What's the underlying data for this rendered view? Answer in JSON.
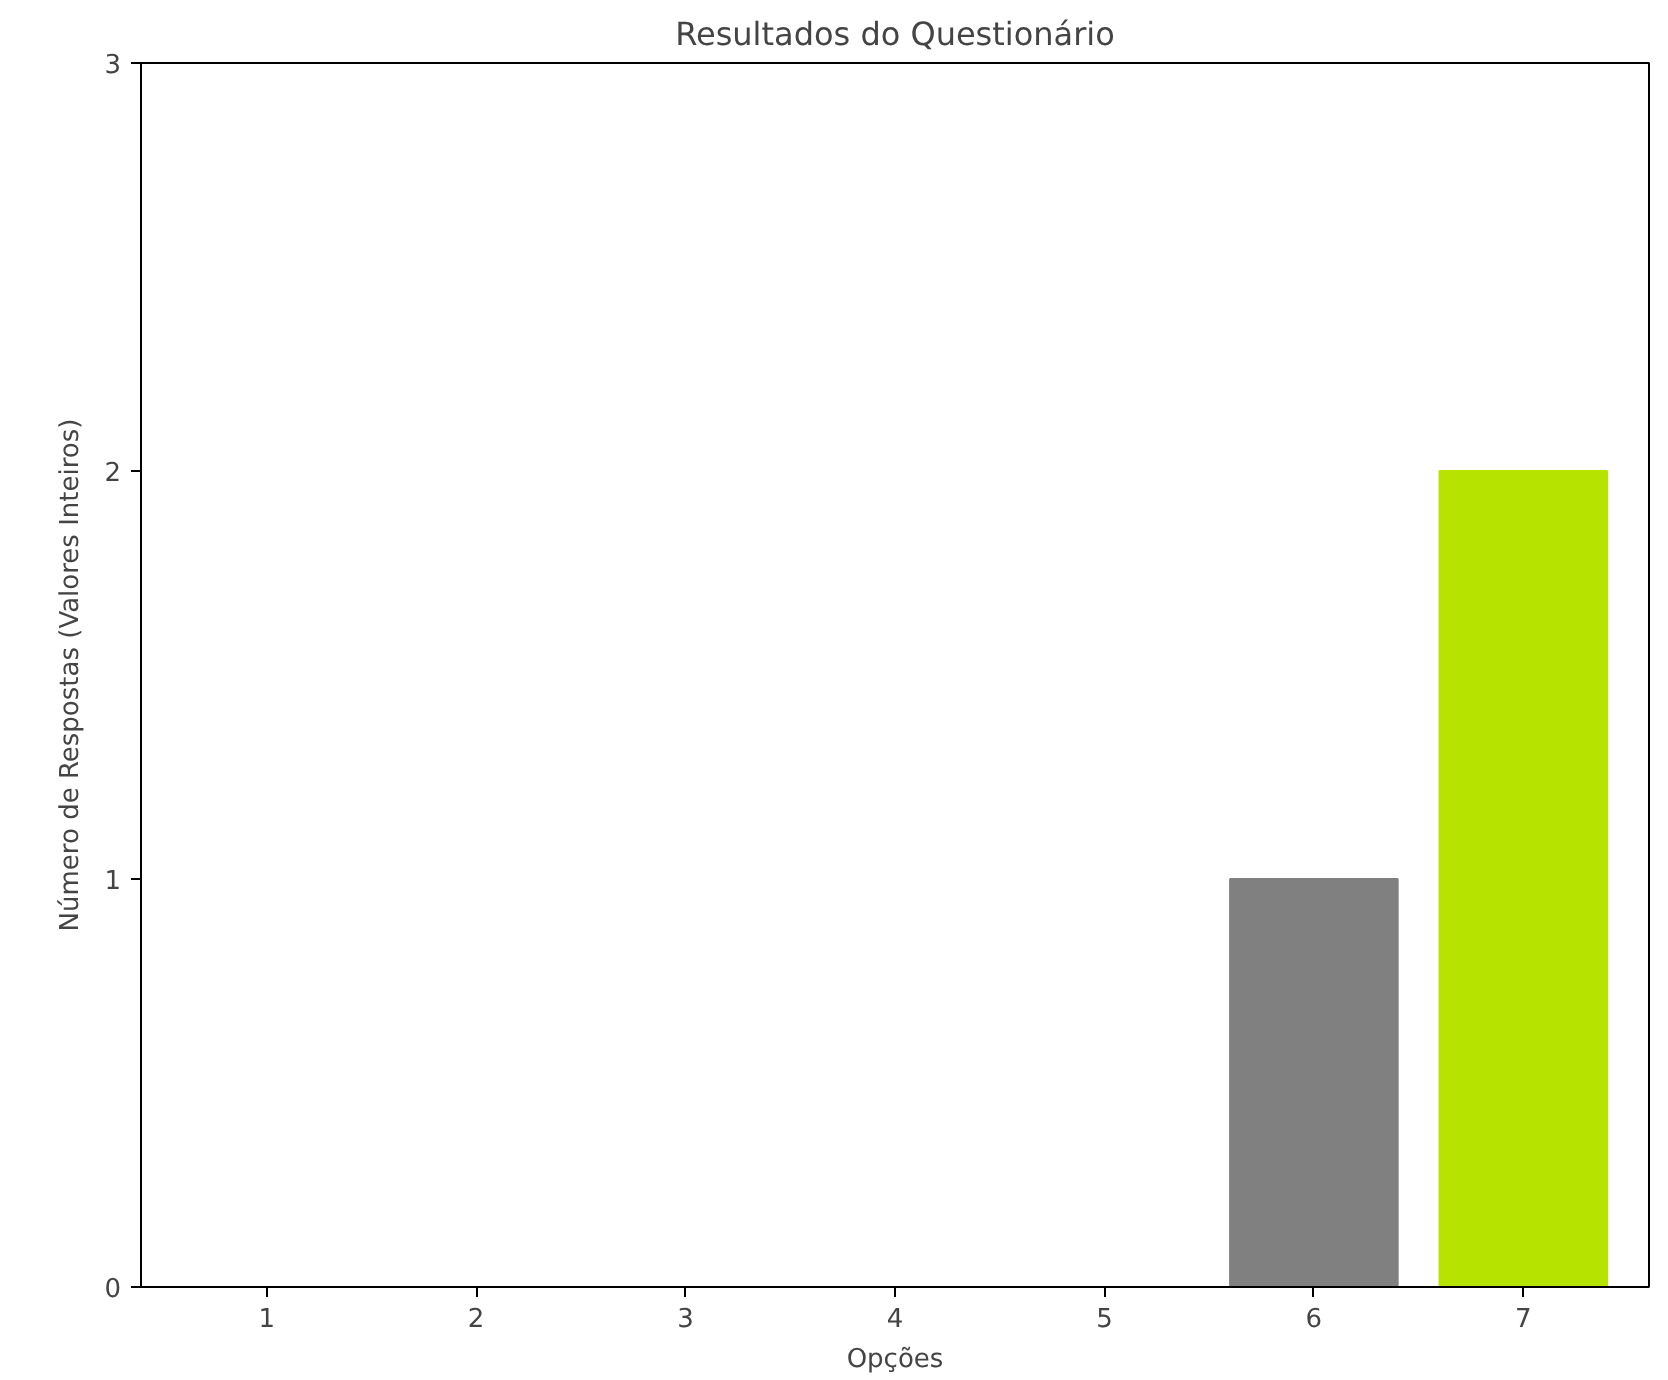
{
  "chart_data": {
    "type": "bar",
    "title": "Resultados do Questionário",
    "xlabel": "Opções",
    "ylabel": "Número de Respostas (Valores Inteiros)",
    "categories": [
      "1",
      "2",
      "3",
      "4",
      "5",
      "6",
      "7"
    ],
    "values": [
      0,
      0,
      0,
      0,
      0,
      1,
      2
    ],
    "colors": [
      "#808080",
      "#808080",
      "#808080",
      "#808080",
      "#808080",
      "#808080",
      "#b6e400"
    ],
    "ylim": [
      0,
      3
    ],
    "yticks": [
      0,
      1,
      2,
      3
    ],
    "grid": false
  }
}
